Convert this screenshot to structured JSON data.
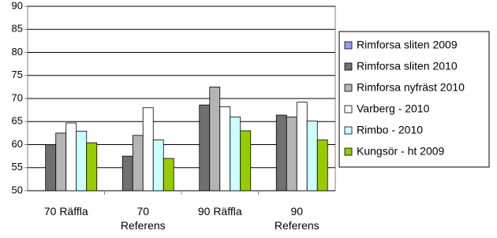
{
  "chart_data": {
    "type": "bar",
    "categories": [
      "70 Räffla",
      "70 Referens",
      "90 Räffla",
      "90 Referens"
    ],
    "series": [
      {
        "name": "Rimforsa sliten 2009",
        "color": "#9999ff",
        "values": [
          null,
          null,
          null,
          null
        ]
      },
      {
        "name": "Rimforsa sliten 2010",
        "color": "#707070",
        "values": [
          60,
          57.5,
          68.6,
          66.4
        ]
      },
      {
        "name": "Rimforsa nyfräst 2010",
        "color": "#b4b4b4",
        "values": [
          62.5,
          62,
          72.5,
          66
        ]
      },
      {
        "name": "Varberg - 2010",
        "color": "#ffffff",
        "values": [
          64.7,
          68,
          68.2,
          69.2
        ]
      },
      {
        "name": "Rimbo - 2010",
        "color": "#ccffff",
        "values": [
          62.9,
          61,
          66,
          65.1
        ]
      },
      {
        "name": "Kungsör - ht 2009",
        "color": "#99cc00",
        "values": [
          60.4,
          57,
          63,
          61
        ]
      }
    ],
    "ylim": [
      50,
      90
    ],
    "yticks": [
      50,
      55,
      60,
      65,
      70,
      75,
      80,
      85,
      90
    ],
    "grid": true,
    "legend": "right"
  }
}
